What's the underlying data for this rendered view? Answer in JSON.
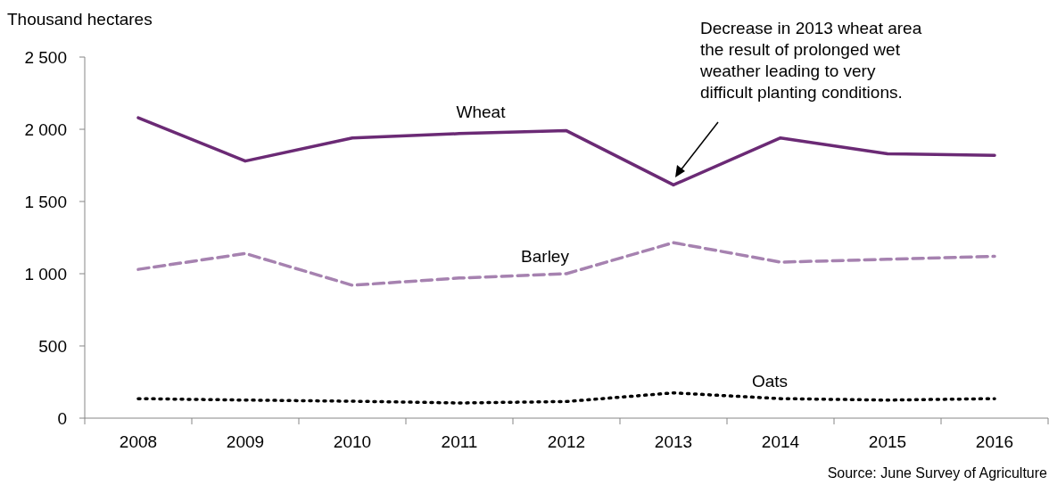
{
  "chart_data": {
    "type": "line",
    "ylabel": "Thousand hectares",
    "categories": [
      "2008",
      "2009",
      "2010",
      "2011",
      "2012",
      "2013",
      "2014",
      "2015",
      "2016"
    ],
    "series": [
      {
        "name": "Wheat",
        "color": "#6b2a75",
        "line_style": "solid",
        "values": [
          2080,
          1780,
          1940,
          1970,
          1990,
          1615,
          1940,
          1830,
          1820
        ]
      },
      {
        "name": "Barley",
        "color": "#a682b0",
        "line_style": "dashed",
        "values": [
          1030,
          1140,
          920,
          970,
          1000,
          1215,
          1080,
          1100,
          1120
        ]
      },
      {
        "name": "Oats",
        "color": "#000000",
        "line_style": "dotted",
        "values": [
          135,
          125,
          117,
          105,
          115,
          175,
          135,
          125,
          135
        ]
      }
    ],
    "ylim": [
      0,
      2500
    ],
    "yticks": [
      0,
      500,
      {
        "value": 1000,
        "label": "1 000"
      },
      {
        "value": 1500,
        "label": "1 500"
      },
      {
        "value": 2000,
        "label": "2 000"
      },
      {
        "value": 2500,
        "label": "2 500"
      }
    ],
    "grid": false,
    "marker": "none",
    "annotations": [
      "Decrease in 2013 wheat area the result of prolonged wet weather leading to very difficult planting conditions.",
      "Source: June Survey of Agriculture"
    ]
  }
}
